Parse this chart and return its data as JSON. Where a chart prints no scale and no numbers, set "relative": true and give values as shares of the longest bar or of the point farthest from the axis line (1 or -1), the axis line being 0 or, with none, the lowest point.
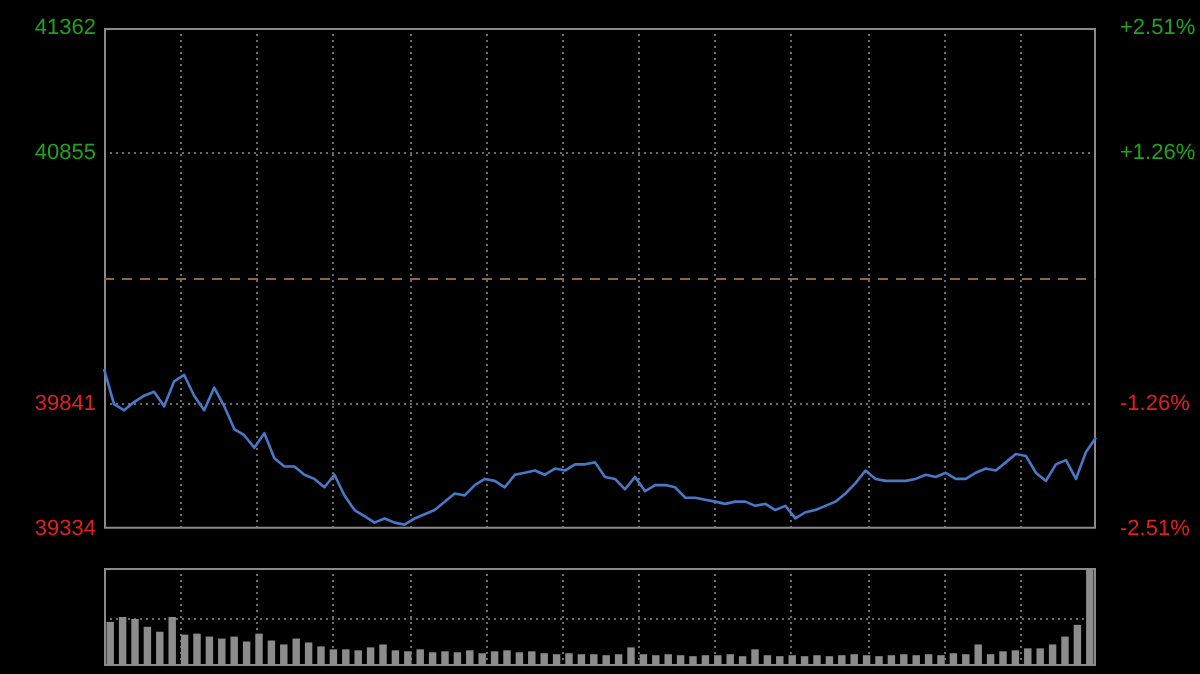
{
  "chart_data": [
    {
      "type": "line",
      "categories": [
        null,
        null,
        null,
        null,
        null,
        null,
        null,
        null,
        null,
        null,
        null,
        null,
        null,
        null,
        null,
        null,
        null,
        null,
        null,
        null,
        null,
        null,
        null,
        null,
        null,
        null,
        null,
        null,
        null,
        null,
        null,
        null,
        null,
        null,
        null,
        null,
        null,
        null,
        null,
        null,
        null,
        null,
        null,
        null,
        null,
        null,
        null,
        null,
        null,
        null,
        null,
        null,
        null,
        null,
        null,
        null,
        null,
        null,
        null,
        null,
        null,
        null,
        null,
        null,
        null,
        null,
        null,
        null,
        null,
        null,
        null,
        null,
        null,
        null,
        null,
        null,
        null,
        null,
        null,
        null,
        null,
        null,
        null,
        null,
        null,
        null,
        null,
        null,
        null,
        null,
        null,
        null,
        null,
        null,
        null,
        null,
        null,
        null,
        null,
        null
      ],
      "series": [
        {
          "color": "#4a78c8",
          "values": [
            39982,
            39839,
            39814,
            39847,
            39873,
            39889,
            39830,
            39931,
            39957,
            39873,
            39814,
            39906,
            39830,
            39738,
            39713,
            39662,
            39721,
            39620,
            39586,
            39586,
            39553,
            39536,
            39502,
            39553,
            39469,
            39410,
            39385,
            39359,
            39376,
            39359,
            39351,
            39376,
            39393,
            39410,
            39444,
            39477,
            39469,
            39511,
            39536,
            39528,
            39502,
            39553,
            39561,
            39570,
            39553,
            39578,
            39570,
            39595,
            39595,
            39603,
            39544,
            39536,
            39494,
            39544,
            39486,
            39511,
            39511,
            39502,
            39460,
            39460,
            39452,
            39444,
            39435,
            39444,
            39444,
            39427,
            39435,
            39410,
            39427,
            39376,
            39401,
            39410,
            39427,
            39444,
            39477,
            39519,
            39570,
            39536,
            39528,
            39528,
            39528,
            39536,
            39553,
            39544,
            39561,
            39536,
            39536,
            39561,
            39578,
            39570,
            39603,
            39637,
            39629,
            39561,
            39528,
            39595,
            39612,
            39536,
            39645,
            39704
          ]
        }
      ],
      "ylim": [
        39334,
        41362
      ],
      "yticks": [
        39334,
        39841,
        40855,
        41362
      ],
      "y2lim": [
        -2.51,
        2.51
      ],
      "y2ticks": [
        {
          "value": -2.51,
          "label": "-2.51%"
        },
        {
          "value": -1.26,
          "label": "-1.26%"
        },
        {
          "value": 1.26,
          "label": "+1.26%"
        },
        {
          "value": 2.51,
          "label": "+2.51%"
        }
      ],
      "ref_lines": [
        {
          "axis": "y",
          "value": 40348,
          "color": "#8a6a3a",
          "line_style": "dashed"
        }
      ],
      "grid": true,
      "marker": "none",
      "line_style": "solid",
      "legend": false
    },
    {
      "type": "bar",
      "relative": true,
      "categories": [
        null,
        null,
        null,
        null,
        null,
        null,
        null,
        null,
        null,
        null,
        null,
        null,
        null,
        null,
        null,
        null,
        null,
        null,
        null,
        null,
        null,
        null,
        null,
        null,
        null,
        null,
        null,
        null,
        null,
        null,
        null,
        null,
        null,
        null,
        null,
        null,
        null,
        null,
        null,
        null,
        null,
        null,
        null,
        null,
        null,
        null,
        null,
        null,
        null,
        null,
        null,
        null,
        null,
        null,
        null,
        null,
        null,
        null,
        null,
        null,
        null,
        null,
        null,
        null,
        null,
        null,
        null,
        null,
        null,
        null,
        null,
        null,
        null,
        null,
        null,
        null,
        null,
        null,
        null,
        null
      ],
      "values": [
        0.45,
        0.5,
        0.48,
        0.4,
        0.35,
        0.5,
        0.32,
        0.33,
        0.3,
        0.28,
        0.3,
        0.25,
        0.33,
        0.26,
        0.22,
        0.28,
        0.24,
        0.2,
        0.17,
        0.17,
        0.16,
        0.19,
        0.22,
        0.16,
        0.15,
        0.17,
        0.14,
        0.15,
        0.14,
        0.16,
        0.13,
        0.15,
        0.16,
        0.14,
        0.15,
        0.13,
        0.12,
        0.13,
        0.12,
        0.12,
        0.11,
        0.12,
        0.19,
        0.12,
        0.11,
        0.12,
        0.11,
        0.1,
        0.11,
        0.11,
        0.12,
        0.1,
        0.17,
        0.11,
        0.1,
        0.11,
        0.1,
        0.11,
        0.1,
        0.11,
        0.12,
        0.11,
        0.1,
        0.11,
        0.12,
        0.11,
        0.12,
        0.11,
        0.13,
        0.12,
        0.22,
        0.12,
        0.15,
        0.16,
        0.18,
        0.18,
        0.22,
        0.3,
        0.42,
        1
      ],
      "color": "#8c8c8c",
      "grid": true,
      "legend": false
    }
  ]
}
